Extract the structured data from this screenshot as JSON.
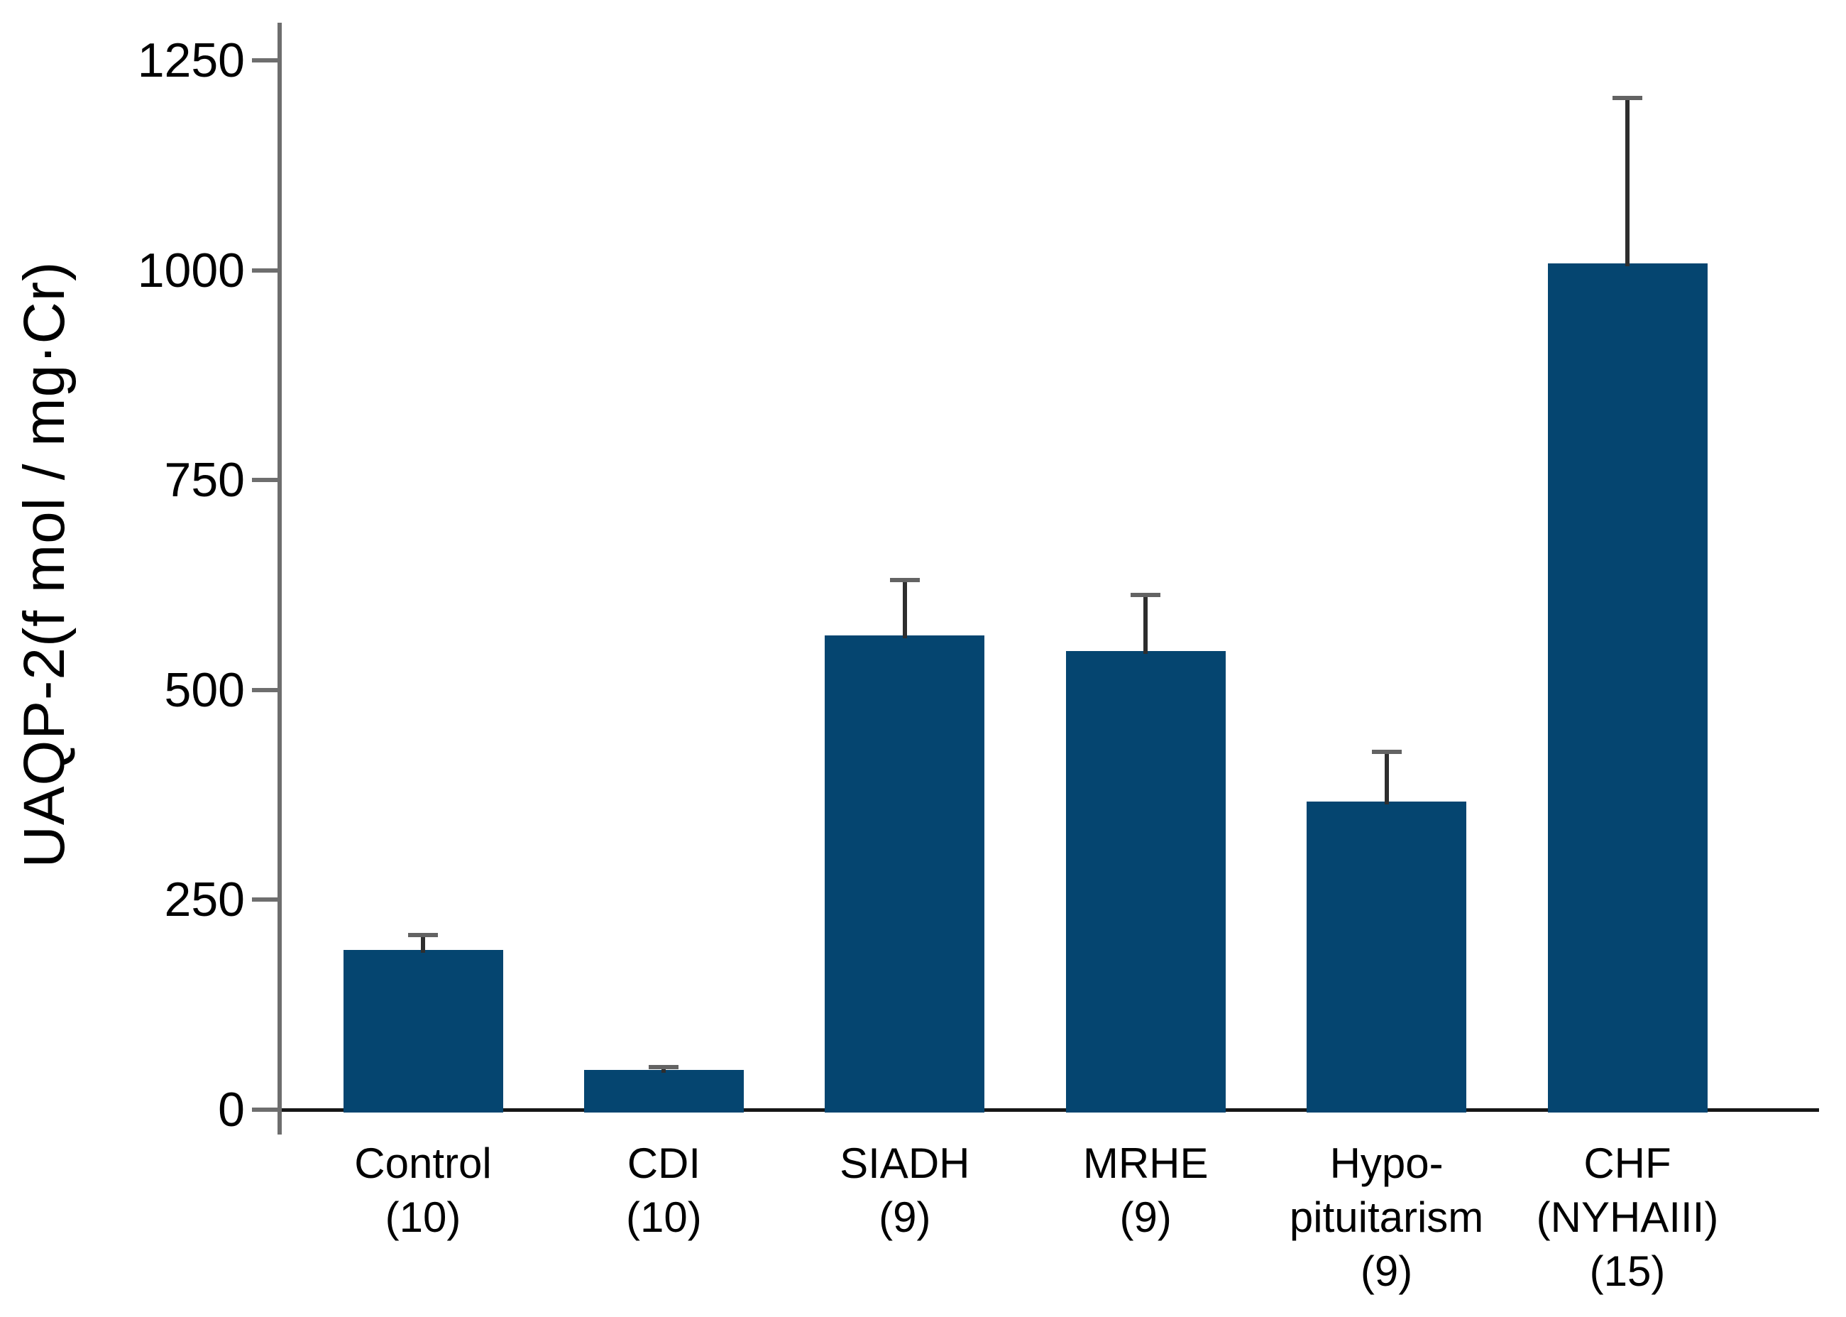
{
  "chart_data": {
    "type": "bar",
    "title": "",
    "xlabel": "",
    "ylabel": "UAQP-2(f mol / mg·Cr)",
    "ylim": [
      0,
      1295
    ],
    "yticks": [
      0,
      250,
      500,
      750,
      1000,
      1250
    ],
    "grid": false,
    "legend": false,
    "categories": [
      "Control",
      "CDI",
      "SIADH",
      "MRHE",
      "Hypo-pituitarism",
      "CHF (NYHAIII)"
    ],
    "x_tick_label_lines": [
      [
        "Control",
        "(10)"
      ],
      [
        "CDI",
        "(10)"
      ],
      [
        "SIADH",
        "(9)"
      ],
      [
        "MRHE",
        "(9)"
      ],
      [
        "Hypo-",
        "pituitarism",
        "(9)"
      ],
      [
        "CHF",
        "(NYHAIII)",
        "(15)"
      ]
    ],
    "n_per_group": [
      10,
      10,
      9,
      9,
      9,
      15
    ],
    "series": [
      {
        "name": "UAQP-2",
        "values": [
          190,
          47,
          565,
          546,
          367,
          1008
        ],
        "errors_upper": [
          18,
          4,
          66,
          67,
          59,
          197
        ]
      }
    ],
    "colors": {
      "bar_fill": "#054570",
      "axis": "#6e6e6e",
      "baseline": "#161616",
      "error_line": "#2e2e2e",
      "error_cap": "#636363",
      "text": "#000000",
      "background": "#ffffff"
    }
  }
}
